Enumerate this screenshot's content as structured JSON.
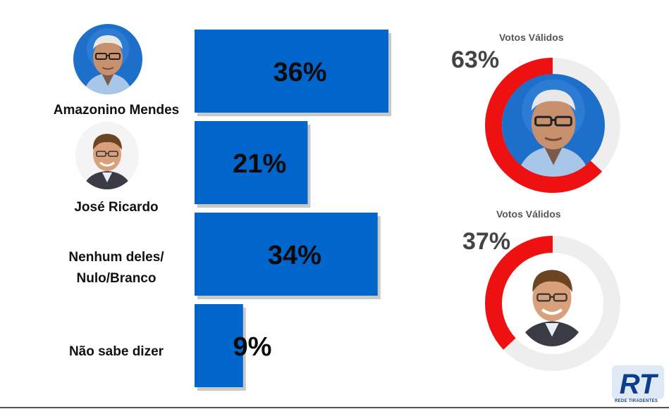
{
  "chart_data": [
    {
      "type": "bar",
      "orientation": "horizontal",
      "categories": [
        "Amazonino Mendes",
        "José Ricardo",
        "Nenhum deles/ Nulo/Branco",
        "Não sabe dizer"
      ],
      "category_lines": [
        [
          "Amazonino Mendes"
        ],
        [
          "José Ricardo"
        ],
        [
          "Nenhum deles/",
          "Nulo/Branco"
        ],
        [
          "Não sabe dizer"
        ]
      ],
      "values": [
        36,
        21,
        34,
        9
      ],
      "value_labels": [
        "36%",
        "21%",
        "34%",
        "9%"
      ],
      "xlim": [
        0,
        36
      ],
      "bar_color": "#0066cc",
      "grid": false
    },
    {
      "type": "pie",
      "variant": "donut",
      "title": "Votos Válidos",
      "value": 63,
      "value_label": "63%",
      "candidate": "Amazonino Mendes",
      "fill_color": "#ee1111",
      "track_color": "#eeeeee"
    },
    {
      "type": "pie",
      "variant": "donut",
      "title": "Votos Válidos",
      "value": 37,
      "value_label": "37%",
      "candidate": "José Ricardo",
      "fill_color": "#ee1111",
      "track_color": "#eeeeee"
    }
  ],
  "logo": {
    "text": "RT",
    "caption": "REDE TIRADENTES",
    "color": "#0b3d8c"
  }
}
